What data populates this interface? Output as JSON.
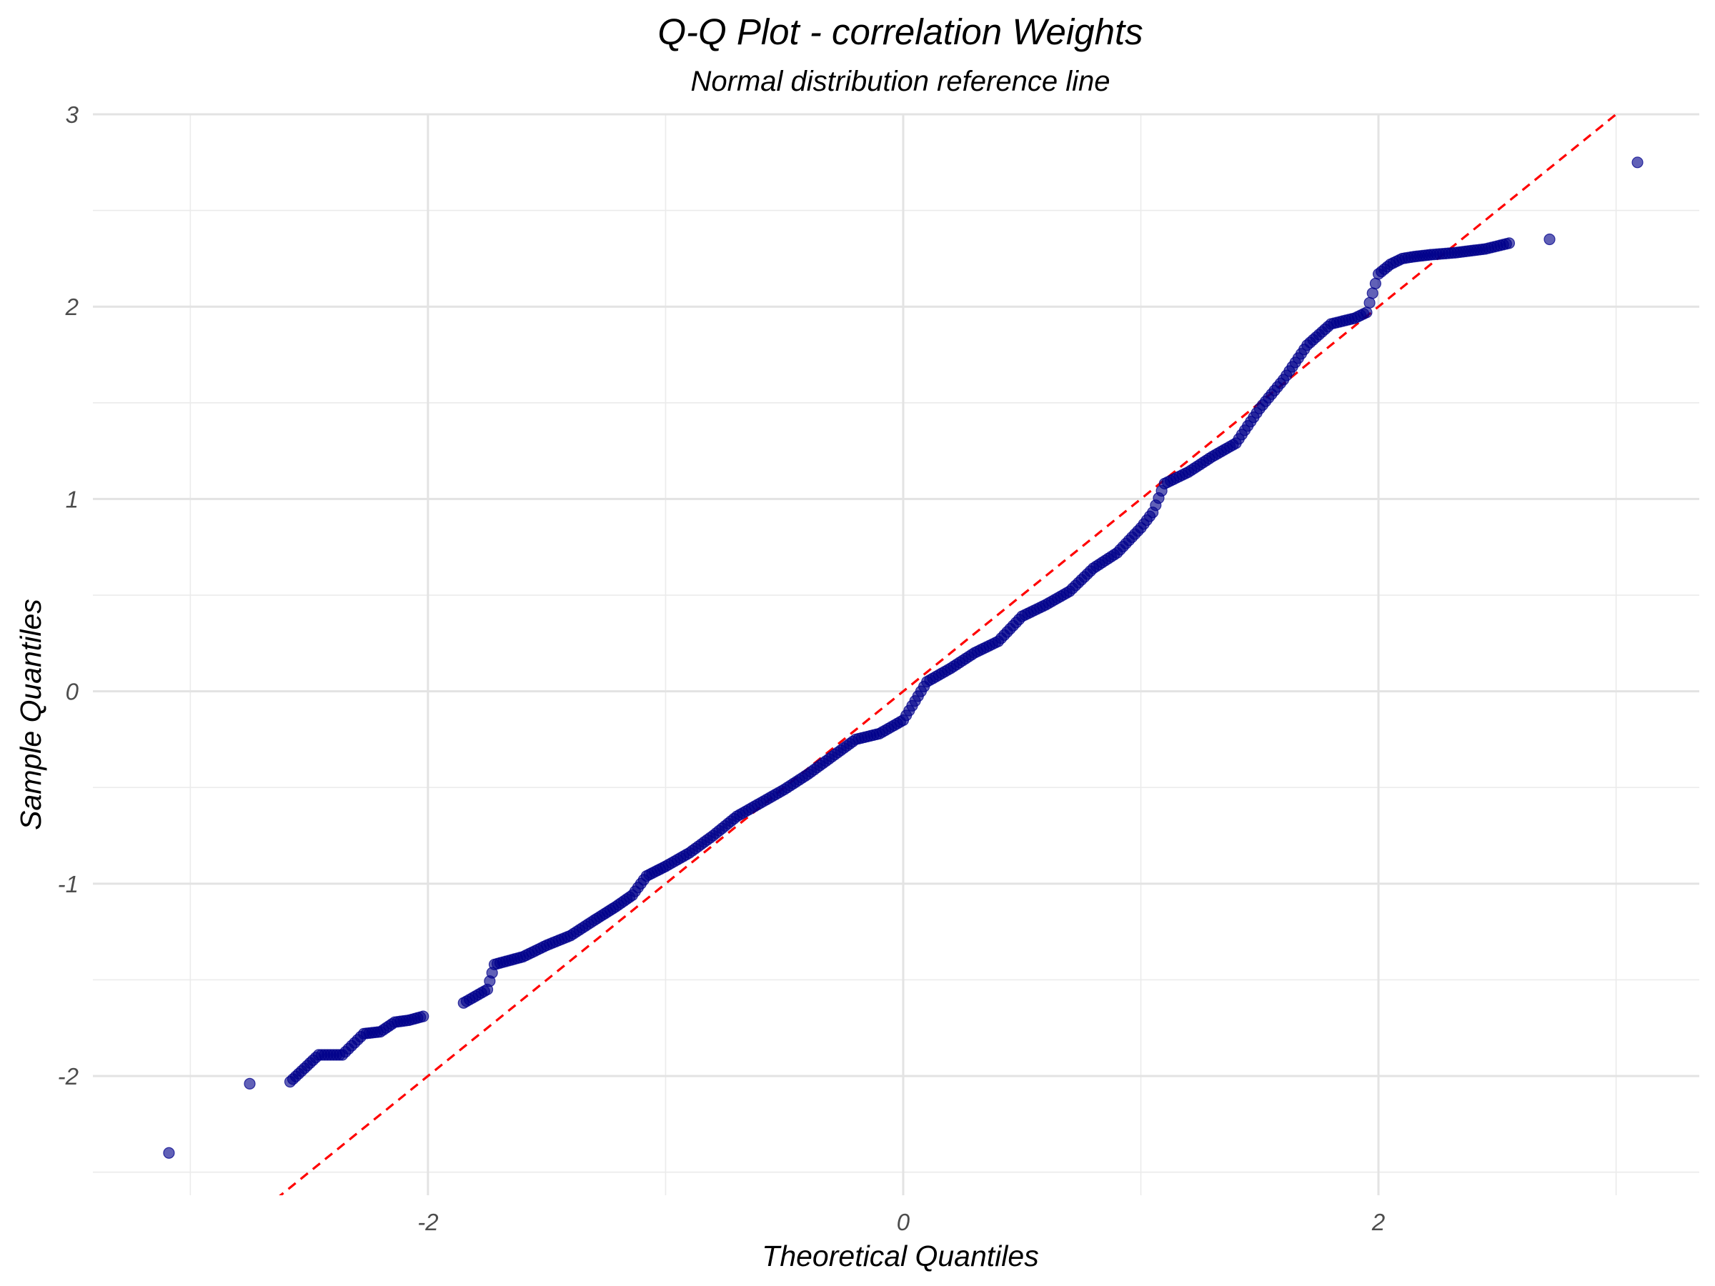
{
  "chart_data": {
    "type": "scatter",
    "title": "Q-Q Plot - correlation Weights",
    "subtitle": "Normal distribution reference line",
    "xlabel": "Theoretical Quantiles",
    "ylabel": "Sample Quantiles",
    "xlim": [
      -3.41,
      3.35
    ],
    "ylim": [
      -2.62,
      3.0
    ],
    "x_ticks": [
      -2,
      0,
      2
    ],
    "x_tick_labels": [
      "-2",
      "0",
      "2"
    ],
    "y_ticks": [
      -2,
      -1,
      0,
      1,
      2,
      3
    ],
    "y_tick_labels": [
      "-2",
      "-1",
      "0",
      "1",
      "2",
      "3"
    ],
    "x_minor_ticks": [
      -3,
      -1,
      1,
      3
    ],
    "y_minor_ticks": [
      -2.5,
      -1.5,
      -0.5,
      0.5,
      1.5,
      2.5
    ],
    "grid": true,
    "reference_line": {
      "type": "dashed",
      "color": "#ff0000",
      "slope": 1.0,
      "intercept": 0.0
    },
    "point_color": "#00008b",
    "series": [
      {
        "values_are_quantile_anchors": true,
        "points": [
          [
            -3.09,
            -2.4
          ],
          [
            -2.75,
            -2.04
          ],
          [
            -2.58,
            -2.03
          ],
          [
            -2.46,
            -1.89
          ],
          [
            -2.36,
            -1.89
          ],
          [
            -2.27,
            -1.78
          ],
          [
            -2.2,
            -1.77
          ],
          [
            -2.14,
            -1.72
          ],
          [
            -2.08,
            -1.71
          ],
          [
            -2.02,
            -1.69
          ],
          [
            -1.85,
            -1.62
          ],
          [
            -1.75,
            -1.55
          ],
          [
            -1.72,
            -1.42
          ],
          [
            -1.6,
            -1.38
          ],
          [
            -1.5,
            -1.32
          ],
          [
            -1.4,
            -1.27
          ],
          [
            -1.3,
            -1.19
          ],
          [
            -1.21,
            -1.12
          ],
          [
            -1.14,
            -1.06
          ],
          [
            -1.08,
            -0.96
          ],
          [
            -1.0,
            -0.91
          ],
          [
            -0.9,
            -0.84
          ],
          [
            -0.8,
            -0.75
          ],
          [
            -0.7,
            -0.65
          ],
          [
            -0.6,
            -0.58
          ],
          [
            -0.5,
            -0.51
          ],
          [
            -0.4,
            -0.43
          ],
          [
            -0.3,
            -0.34
          ],
          [
            -0.2,
            -0.25
          ],
          [
            -0.1,
            -0.22
          ],
          [
            0.0,
            -0.15
          ],
          [
            0.1,
            0.05
          ],
          [
            0.2,
            0.12
          ],
          [
            0.3,
            0.2
          ],
          [
            0.4,
            0.26
          ],
          [
            0.5,
            0.39
          ],
          [
            0.6,
            0.45
          ],
          [
            0.7,
            0.52
          ],
          [
            0.8,
            0.64
          ],
          [
            0.9,
            0.72
          ],
          [
            1.0,
            0.85
          ],
          [
            1.05,
            0.93
          ],
          [
            1.1,
            1.08
          ],
          [
            1.2,
            1.14
          ],
          [
            1.3,
            1.22
          ],
          [
            1.4,
            1.29
          ],
          [
            1.5,
            1.47
          ],
          [
            1.6,
            1.62
          ],
          [
            1.7,
            1.8
          ],
          [
            1.8,
            1.91
          ],
          [
            1.9,
            1.94
          ],
          [
            1.95,
            1.97
          ],
          [
            2.0,
            2.17
          ],
          [
            2.05,
            2.22
          ],
          [
            2.1,
            2.25
          ],
          [
            2.15,
            2.26
          ],
          [
            2.22,
            2.27
          ],
          [
            2.32,
            2.28
          ],
          [
            2.45,
            2.3
          ],
          [
            2.55,
            2.33
          ],
          [
            2.72,
            2.35
          ],
          [
            3.09,
            2.75
          ]
        ]
      }
    ]
  }
}
